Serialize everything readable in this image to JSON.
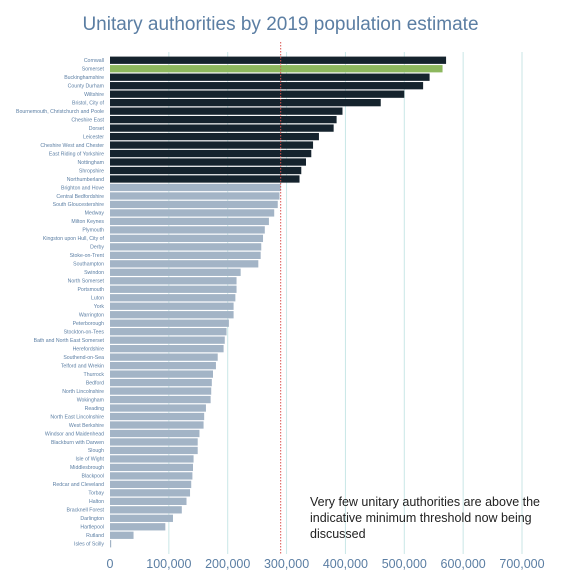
{
  "chart_data": {
    "type": "bar",
    "orientation": "horizontal",
    "title": "Unitary authorities by 2019 population estimate",
    "xlabel": "",
    "ylabel": "",
    "xlim": [
      0,
      700000
    ],
    "xticks": [
      0,
      100000,
      200000,
      300000,
      400000,
      500000,
      600000,
      700000
    ],
    "xtick_labels": [
      "0",
      "100,000",
      "200,000",
      "300,000",
      "400,000",
      "500,000",
      "600,000",
      "700,000"
    ],
    "grid": "vertical",
    "reference_line": {
      "value": 290000,
      "style": "dotted",
      "color": "#d9534f"
    },
    "colors": {
      "above": "#15232d",
      "highlight": "#8db85e",
      "below": "#a3b4c6",
      "grid": "#c9e6e6",
      "text": "#5b7ea3"
    },
    "categories": [
      "Cornwall",
      "Somerset",
      "Buckinghamshire",
      "County Durham",
      "Wiltshire",
      "Bristol, City of",
      "Bournemouth, Christchurch and Poole",
      "Cheshire East",
      "Dorset",
      "Leicester",
      "Cheshire West and Chester",
      "East Riding of Yorkshire",
      "Nottingham",
      "Shropshire",
      "Northumberland",
      "Brighton and Hove",
      "Central Bedfordshire",
      "South Gloucestershire",
      "Medway",
      "Milton Keynes",
      "Plymouth",
      "Kingston upon Hull, City of",
      "Derby",
      "Stoke-on-Trent",
      "Southampton",
      "Swindon",
      "North Somerset",
      "Portsmouth",
      "Luton",
      "York",
      "Warrington",
      "Peterborough",
      "Stockton-on-Tees",
      "Bath and North East Somerset",
      "Herefordshire",
      "Southend-on-Sea",
      "Telford and Wrekin",
      "Thurrock",
      "Bedford",
      "North Lincolnshire",
      "Wokingham",
      "Reading",
      "North East Lincolnshire",
      "West Berkshire",
      "Windsor and Maidenhead",
      "Blackburn with Darwen",
      "Slough",
      "Isle of Wight",
      "Middlesbrough",
      "Blackpool",
      "Redcar and Cleveland",
      "Torbay",
      "Halton",
      "Bracknell Forest",
      "Darlington",
      "Hartlepool",
      "Rutland",
      "Isles of Scilly"
    ],
    "values": [
      571000,
      565000,
      543000,
      532000,
      500000,
      460000,
      395000,
      385000,
      380000,
      355000,
      345000,
      342000,
      333000,
      325000,
      322000,
      290000,
      288000,
      285000,
      279000,
      270000,
      263000,
      260000,
      257000,
      256000,
      252000,
      222000,
      215000,
      215000,
      213000,
      210000,
      210000,
      202000,
      198000,
      195000,
      193000,
      183000,
      180000,
      175000,
      173000,
      172000,
      171000,
      163000,
      160000,
      159000,
      152000,
      149000,
      149000,
      142000,
      141000,
      140000,
      138000,
      136000,
      130000,
      122000,
      107000,
      94000,
      40000,
      2000
    ],
    "highlight_index": 1,
    "threshold_index": 15,
    "annotation": "Very few unitary authorities are above the indicative minimum threshold now being discussed"
  }
}
